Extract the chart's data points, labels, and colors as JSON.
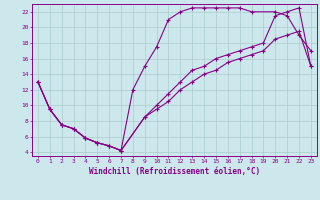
{
  "xlabel": "Windchill (Refroidissement éolien,°C)",
  "xlim": [
    -0.5,
    23.5
  ],
  "ylim": [
    3.5,
    23
  ],
  "xticks": [
    0,
    1,
    2,
    3,
    4,
    5,
    6,
    7,
    8,
    9,
    10,
    11,
    12,
    13,
    14,
    15,
    16,
    17,
    18,
    19,
    20,
    21,
    22,
    23
  ],
  "yticks": [
    4,
    6,
    8,
    10,
    12,
    14,
    16,
    18,
    20,
    22
  ],
  "line_color": "#880088",
  "bg_color": "#cce8ec",
  "grid_color": "#aacccc",
  "line1_x": [
    0,
    1,
    2,
    3,
    4,
    5,
    6,
    7,
    8,
    9,
    10,
    11,
    12,
    13,
    14,
    15,
    16,
    17,
    18,
    20,
    21,
    22,
    23
  ],
  "line1_y": [
    13,
    9.5,
    7.5,
    7,
    5.8,
    5.2,
    4.8,
    4.2,
    12,
    15,
    17.5,
    21,
    22,
    22.5,
    22.5,
    22.5,
    22.5,
    22.5,
    22,
    22,
    21.5,
    19,
    17
  ],
  "line2_x": [
    0,
    1,
    2,
    3,
    4,
    5,
    6,
    7,
    9,
    10,
    11,
    12,
    13,
    14,
    15,
    16,
    17,
    18,
    19,
    20,
    21,
    22,
    23
  ],
  "line2_y": [
    13,
    9.5,
    7.5,
    7,
    5.8,
    5.2,
    4.8,
    4.2,
    8.5,
    10,
    11.5,
    13,
    14.5,
    15,
    16,
    16.5,
    17,
    17.5,
    18,
    21.5,
    22,
    22.5,
    15
  ],
  "line3_x": [
    0,
    1,
    2,
    3,
    4,
    5,
    6,
    7,
    9,
    10,
    11,
    12,
    13,
    14,
    15,
    16,
    17,
    18,
    19,
    20,
    21,
    22,
    23
  ],
  "line3_y": [
    13,
    9.5,
    7.5,
    7,
    5.8,
    5.2,
    4.8,
    4.2,
    8.5,
    9.5,
    10.5,
    12,
    13,
    14,
    14.5,
    15.5,
    16,
    16.5,
    17,
    18.5,
    19,
    19.5,
    15
  ]
}
